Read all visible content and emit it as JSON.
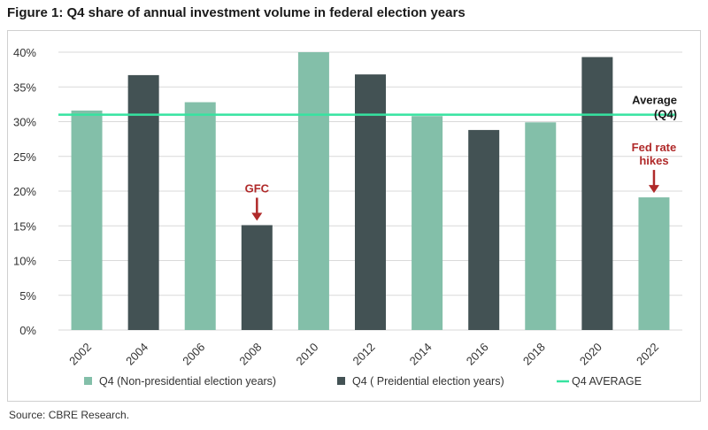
{
  "figure": {
    "title": "Figure 1: Q4 share of annual investment volume in federal election years",
    "source": "Source: CBRE Research."
  },
  "colors": {
    "non_presidential": "#83bfa9",
    "presidential": "#435254",
    "average": "#36e3a0",
    "annotation": "#b02a2a",
    "grid": "#d9d9d9"
  },
  "chart_data": {
    "type": "bar",
    "categories": [
      "2002",
      "2004",
      "2006",
      "2008",
      "2010",
      "2012",
      "2014",
      "2016",
      "2018",
      "2020",
      "2022"
    ],
    "values": [
      31.6,
      36.7,
      32.8,
      15.1,
      40.0,
      36.8,
      30.8,
      28.8,
      29.9,
      39.3,
      19.1
    ],
    "bar_group": [
      "non_presidential",
      "presidential",
      "non_presidential",
      "presidential",
      "non_presidential",
      "presidential",
      "non_presidential",
      "presidential",
      "non_presidential",
      "presidential",
      "non_presidential"
    ],
    "average_value": 31.0,
    "ylim": [
      0,
      40
    ],
    "yticks": [
      0,
      5,
      10,
      15,
      20,
      25,
      30,
      35,
      40
    ],
    "ytick_labels": [
      "0%",
      "5%",
      "10%",
      "15%",
      "20%",
      "25%",
      "30%",
      "35%",
      "40%"
    ],
    "grid": true,
    "legend": {
      "placement": "bottom",
      "entries": [
        {
          "key": "non_presidential",
          "label": "Q4 (Non-presidential election years)"
        },
        {
          "key": "presidential",
          "label": "Q4 ( Preidential election years)"
        },
        {
          "key": "average",
          "label": "Q4 AVERAGE"
        }
      ]
    },
    "average_label_lines": [
      "Average",
      "(Q4)"
    ],
    "annotations": [
      {
        "category": "2008",
        "lines": [
          "GFC"
        ]
      },
      {
        "category": "2022",
        "lines": [
          "Fed rate",
          "hikes"
        ]
      }
    ]
  }
}
